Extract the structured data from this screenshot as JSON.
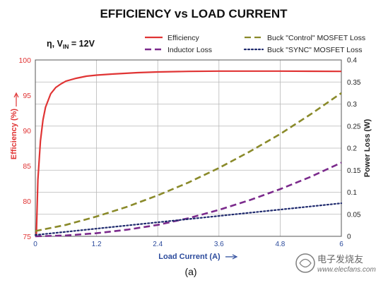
{
  "chart_data": {
    "type": "line",
    "title": "EFFICIENCY vs LOAD CURRENT",
    "condition": {
      "prefix": "η, V",
      "sub": "IN",
      "suffix": " = 12V"
    },
    "xlabel": "Load Current (A)",
    "ylabel_left": "Efficiency (%)",
    "ylabel_right": "Power Loss (W)",
    "xlim": [
      0,
      6
    ],
    "ylim_left": [
      75,
      100
    ],
    "ylim_right": [
      0,
      0.4
    ],
    "x_ticks": [
      "0",
      "1.2",
      "2.4",
      "3.6",
      "4.8",
      "6"
    ],
    "y_left_ticks": [
      "75",
      "80",
      "85",
      "90",
      "95",
      "100"
    ],
    "y_right_ticks": [
      "0",
      "0.05",
      "0.1",
      "0.15",
      "0.2",
      "0.25",
      "0.3",
      "0.35",
      "0.4"
    ],
    "grid": true,
    "series": [
      {
        "name": "Efficiency",
        "axis": "left",
        "color": "#e03434",
        "style": "solid",
        "x": [
          0.02,
          0.05,
          0.1,
          0.15,
          0.2,
          0.3,
          0.4,
          0.5,
          0.6,
          0.8,
          1.0,
          1.2,
          1.5,
          2.0,
          2.4,
          3.0,
          3.6,
          4.2,
          4.8,
          5.4,
          6.0
        ],
        "y": [
          75,
          83,
          88.5,
          91.5,
          93.3,
          95.2,
          96.1,
          96.6,
          97.0,
          97.4,
          97.7,
          97.85,
          98.0,
          98.2,
          98.3,
          98.38,
          98.42,
          98.42,
          98.42,
          98.4,
          98.38
        ]
      },
      {
        "name": "Buck \"Control\" MOSFET Loss",
        "axis": "right",
        "color": "#8a8a2a",
        "style": "dashed",
        "x": [
          0,
          0.6,
          1.2,
          1.8,
          2.4,
          3.0,
          3.6,
          4.2,
          4.8,
          5.4,
          6.0
        ],
        "y": [
          0.012,
          0.026,
          0.045,
          0.067,
          0.093,
          0.122,
          0.155,
          0.192,
          0.232,
          0.277,
          0.325
        ]
      },
      {
        "name": "Inductor Loss",
        "axis": "right",
        "color": "#7b2a8c",
        "style": "dashed",
        "x": [
          0,
          0.6,
          1.2,
          1.8,
          2.4,
          3.0,
          3.6,
          4.2,
          4.8,
          5.4,
          6.0
        ],
        "y": [
          0.0,
          0.002,
          0.007,
          0.015,
          0.026,
          0.041,
          0.06,
          0.082,
          0.107,
          0.135,
          0.167
        ]
      },
      {
        "name": "Buck \"SYNC\" MOSFET Loss",
        "axis": "right",
        "color": "#1f2a6e",
        "style": "dotted",
        "x": [
          0,
          6.0
        ],
        "y": [
          0.003,
          0.075
        ]
      }
    ],
    "legend_position": "top",
    "caption": "(a)"
  },
  "watermark": {
    "text": "电子发烧友",
    "subtext": "www.elecfans.com"
  }
}
